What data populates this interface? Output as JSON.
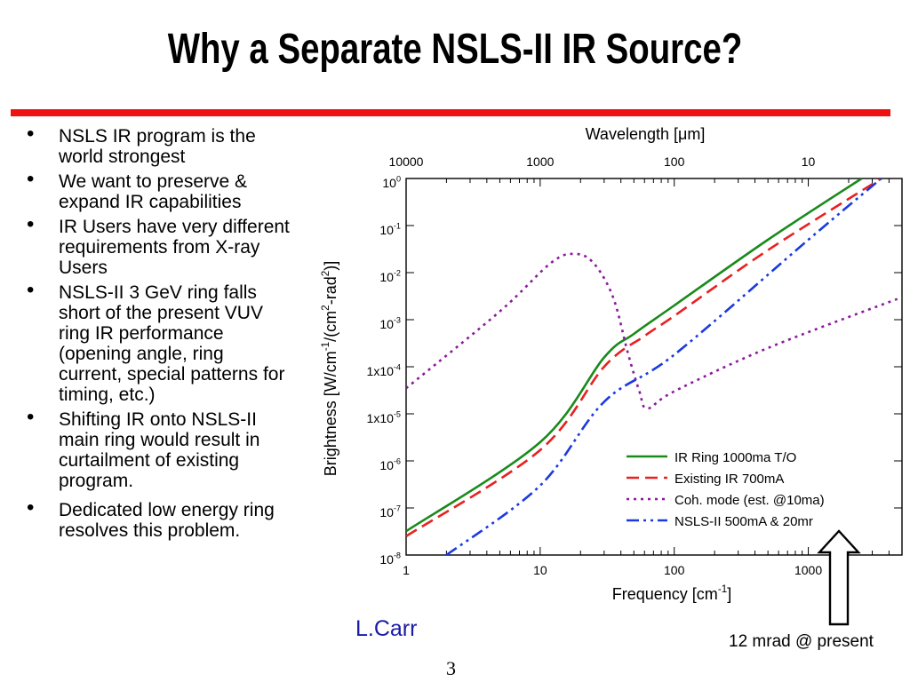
{
  "slide": {
    "title": "Why a Separate NSLS-II IR Source?",
    "rule_color": "#ee1111",
    "author": "L.Carr",
    "page_number": "3",
    "annotation": "12 mrad @ present"
  },
  "bullets": [
    "NSLS IR program is the world strongest",
    "We want to preserve & expand IR capabilities",
    "IR Users have very different requirements from X-ray Users",
    "NSLS-II 3 GeV ring falls short of the present VUV ring IR performance (opening angle, ring current, special patterns for timing, etc.)",
    "Shifting IR onto NSLS-II main ring would result in curtailment of existing program.",
    "Dedicated low energy ring resolves this problem."
  ],
  "chart_data": {
    "type": "line",
    "xlabel": "Frequency [cm",
    "xlabel_sup": "-1",
    "xlabel_end": "]",
    "x2label": "Wavelength [μm]",
    "ylabel": "Brightness [W/cm",
    "ylabel_sup1": "-1",
    "ylabel_mid": "/(cm",
    "ylabel_sup2": "2",
    "ylabel_end": "-rad",
    "ylabel_sup3": "2",
    "ylabel_close": ")]",
    "x_scale": "log",
    "y_scale": "log",
    "xlim": [
      1,
      5000
    ],
    "ylim": [
      1e-08,
      1
    ],
    "x_ticks": [
      {
        "value": 1,
        "label": "1"
      },
      {
        "value": 10,
        "label": "10"
      },
      {
        "value": 100,
        "label": "100"
      },
      {
        "value": 1000,
        "label": "1000"
      }
    ],
    "x2_ticks": [
      {
        "value": 10000,
        "label": "10000"
      },
      {
        "value": 1000,
        "label": "1000"
      },
      {
        "value": 100,
        "label": "100"
      },
      {
        "value": 10,
        "label": "10"
      }
    ],
    "y_ticks": [
      {
        "value": 1,
        "base": "10",
        "exp": "0"
      },
      {
        "value": 0.1,
        "base": "10",
        "exp": "-1"
      },
      {
        "value": 0.01,
        "base": "10",
        "exp": "-2"
      },
      {
        "value": 0.001,
        "base": "10",
        "exp": "-3"
      },
      {
        "value": 0.0001,
        "base": "1x10",
        "exp": "-4"
      },
      {
        "value": 1e-05,
        "base": "1x10",
        "exp": "-5"
      },
      {
        "value": 1e-06,
        "base": "10",
        "exp": "-6"
      },
      {
        "value": 1e-07,
        "base": "10",
        "exp": "-7"
      },
      {
        "value": 1e-08,
        "base": "10",
        "exp": "-8"
      }
    ],
    "grid": false,
    "legend_position": "bottom-right",
    "series": [
      {
        "name": "IR Ring 1000ma T/O",
        "color": "#1a8a1a",
        "style": "solid",
        "points": [
          [
            1,
            3.2e-08
          ],
          [
            10,
            2.5e-06
          ],
          [
            30,
            0.000158
          ],
          [
            50,
            0.0005
          ],
          [
            100,
            0.002
          ],
          [
            500,
            0.05
          ],
          [
            2500,
            1
          ]
        ]
      },
      {
        "name": "Existing IR 700mA",
        "color": "#e82020",
        "style": "dashed",
        "points": [
          [
            1,
            2.5e-08
          ],
          [
            10,
            1.7e-06
          ],
          [
            30,
            0.0001
          ],
          [
            60,
            0.00045
          ],
          [
            100,
            0.0012
          ],
          [
            500,
            0.03
          ],
          [
            3500,
            1
          ]
        ]
      },
      {
        "name": "Coh. mode (est. @10ma)",
        "color": "#8a1a9a",
        "style": "dotted",
        "points": [
          [
            1,
            3.5e-05
          ],
          [
            5,
            0.0015
          ],
          [
            12,
            0.016
          ],
          [
            18,
            0.025
          ],
          [
            25,
            0.016
          ],
          [
            35,
            0.003
          ],
          [
            45,
            0.0002
          ],
          [
            55,
            3e-05
          ],
          [
            63,
            1.3e-05
          ],
          [
            100,
            3e-05
          ],
          [
            500,
            0.00025
          ],
          [
            5000,
            0.003
          ]
        ]
      },
      {
        "name": "NSLS-II  500mA & 20mr",
        "color": "#1a3ae0",
        "style": "dashdotdot",
        "points": [
          [
            2,
            1e-08
          ],
          [
            10,
            3e-07
          ],
          [
            30,
            1.8e-05
          ],
          [
            100,
            0.00018
          ],
          [
            1000,
            0.05
          ],
          [
            3500,
            1
          ]
        ]
      }
    ]
  }
}
